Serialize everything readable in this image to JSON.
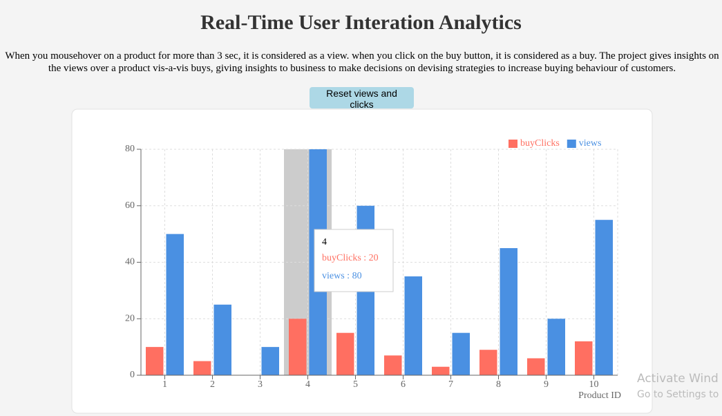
{
  "header": {
    "title": "Real-Time User Interation Analytics",
    "description": "When you mousehover on a product for more than 3 sec, it is considered as a view. when you click on the buy button, it is considered as a buy. The project gives insights on the views over a product vis-a-vis buys, giving insights to business to make decisions on devising strategies to increase buying behaviour of customers.",
    "button": "Reset views and clicks"
  },
  "chart_data": {
    "type": "bar",
    "xlabel": "Product ID",
    "categories": [
      "1",
      "2",
      "3",
      "4",
      "5",
      "6",
      "7",
      "8",
      "9",
      "10"
    ],
    "series": [
      {
        "name": "buyClicks",
        "color": "#ff6f61",
        "values": [
          10,
          5,
          0,
          20,
          15,
          7,
          3,
          9,
          6,
          12
        ]
      },
      {
        "name": "views",
        "color": "#4a90e2",
        "values": [
          50,
          25,
          10,
          80,
          60,
          35,
          15,
          45,
          20,
          55
        ]
      }
    ],
    "ylim": [
      0,
      80
    ],
    "yticks": [
      0,
      20,
      40,
      60,
      80
    ],
    "grid": true,
    "legend": "top-right",
    "active_index": 3,
    "tooltip_separator": " : "
  },
  "watermark": {
    "line1": "Activate Wind",
    "line2": "Go to Settings to a"
  }
}
